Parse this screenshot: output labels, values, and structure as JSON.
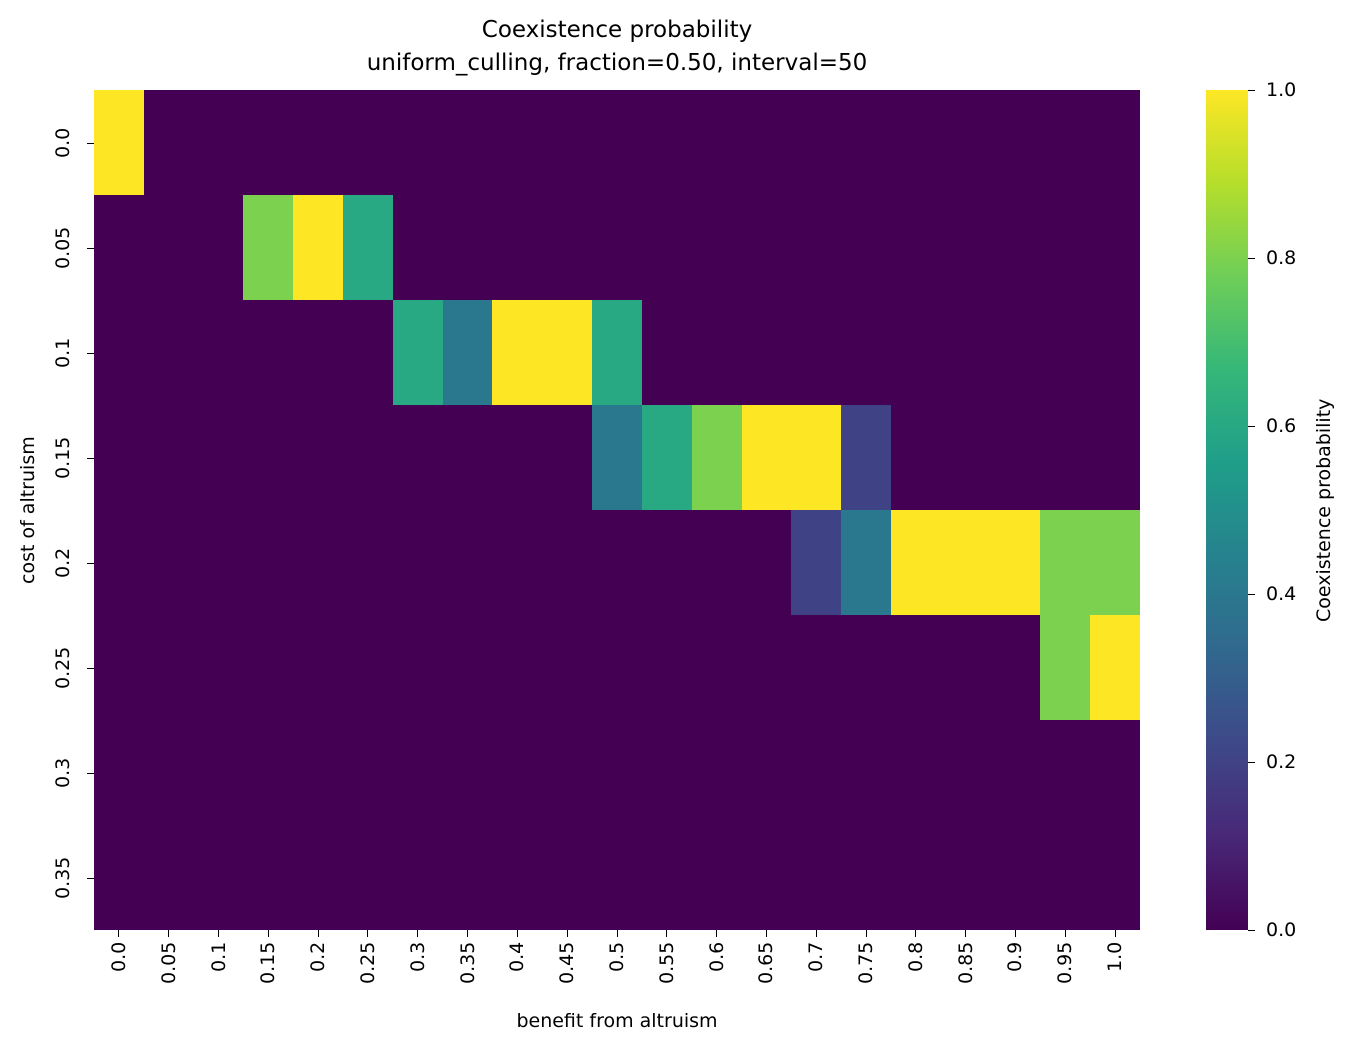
{
  "chart_data": {
    "type": "heatmap",
    "title": "Coexistence probability",
    "subtitle": "uniform_culling, fraction=0.50, interval=50",
    "xlabel": "benefit from altruism",
    "ylabel": "cost of altruism",
    "x": [
      "0.0",
      "0.05",
      "0.1",
      "0.15",
      "0.2",
      "0.25",
      "0.3",
      "0.35",
      "0.4",
      "0.45",
      "0.5",
      "0.55",
      "0.6",
      "0.65",
      "0.7",
      "0.75",
      "0.8",
      "0.85",
      "0.9",
      "0.95",
      "1.0"
    ],
    "y": [
      "0.0",
      "0.05",
      "0.1",
      "0.15",
      "0.2",
      "0.25",
      "0.3",
      "0.35"
    ],
    "values": [
      [
        1.0,
        0,
        0,
        0,
        0,
        0,
        0,
        0,
        0,
        0,
        0,
        0,
        0,
        0,
        0,
        0,
        0,
        0,
        0,
        0,
        0
      ],
      [
        0,
        0,
        0,
        0.8,
        1.0,
        0.6,
        0,
        0,
        0,
        0,
        0,
        0,
        0,
        0,
        0,
        0,
        0,
        0,
        0,
        0,
        0
      ],
      [
        0,
        0,
        0,
        0,
        0,
        0,
        0.6,
        0.4,
        1.0,
        1.0,
        0.6,
        0,
        0,
        0,
        0,
        0,
        0,
        0,
        0,
        0,
        0
      ],
      [
        0,
        0,
        0,
        0,
        0,
        0,
        0,
        0,
        0,
        0,
        0.4,
        0.6,
        0.8,
        1.0,
        1.0,
        0.2,
        0,
        0,
        0,
        0,
        0
      ],
      [
        0,
        0,
        0,
        0,
        0,
        0,
        0,
        0,
        0,
        0,
        0,
        0,
        0,
        0,
        0.2,
        0.4,
        1.0,
        1.0,
        1.0,
        0.8,
        0.8
      ],
      [
        0,
        0,
        0,
        0,
        0,
        0,
        0,
        0,
        0,
        0,
        0,
        0,
        0,
        0,
        0,
        0,
        0,
        0,
        0,
        0.8,
        1.0
      ],
      [
        0,
        0,
        0,
        0,
        0,
        0,
        0,
        0,
        0,
        0,
        0,
        0,
        0,
        0,
        0,
        0,
        0,
        0,
        0,
        0,
        0
      ],
      [
        0,
        0,
        0,
        0,
        0,
        0,
        0,
        0,
        0,
        0,
        0,
        0,
        0,
        0,
        0,
        0,
        0,
        0,
        0,
        0,
        0
      ]
    ],
    "colormap": "viridis",
    "vmin": 0.0,
    "vmax": 1.0,
    "colorbar": {
      "label": "Coexistence probability",
      "ticks": [
        "0.0",
        "0.2",
        "0.4",
        "0.6",
        "0.8",
        "1.0"
      ]
    },
    "grid": false,
    "legend_position": "right (colorbar)"
  },
  "colors": {
    "viridis_stops": [
      "#440154",
      "#482878",
      "#3e4989",
      "#31688e",
      "#26828e",
      "#1f9e89",
      "#35b779",
      "#6ece58",
      "#b5de2b",
      "#fde725"
    ]
  }
}
